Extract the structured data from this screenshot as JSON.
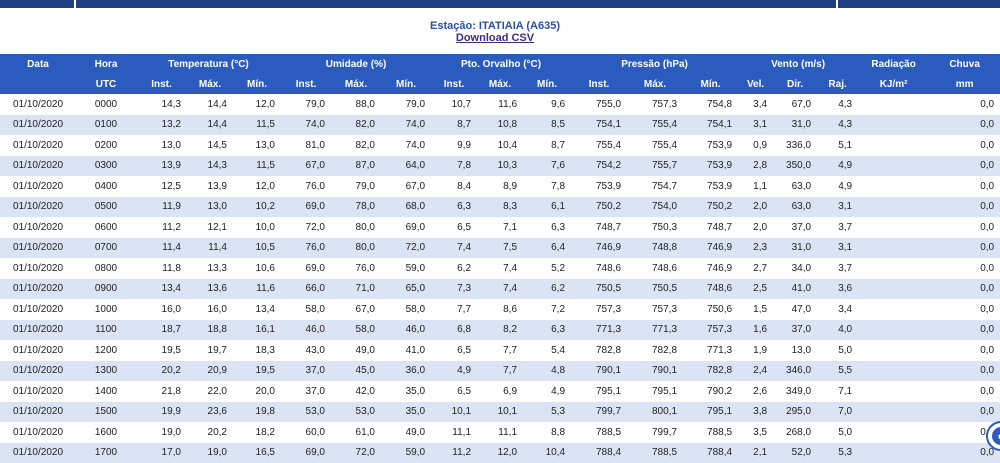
{
  "station": {
    "title": "Estação: ITATIAIA (A635)",
    "download_label": "Download CSV"
  },
  "table": {
    "groups": [
      "Data",
      "Hora",
      "Temperatura (°C)",
      "Umidade (%)",
      "Pto. Orvalho (°C)",
      "Pressão (hPa)",
      "Vento (m/s)",
      "Radiação",
      "Chuva"
    ],
    "subheaders": [
      "UTC",
      "Inst.",
      "Máx.",
      "Mín.",
      "Inst.",
      "Máx.",
      "Mín.",
      "Inst.",
      "Máx.",
      "Mín.",
      "Inst.",
      "Máx.",
      "Mín.",
      "Vel.",
      "Dir.",
      "Raj.",
      "KJ/m²",
      "mm"
    ],
    "rows": [
      [
        "01/10/2020",
        "0000",
        "14,3",
        "14,4",
        "12,0",
        "79,0",
        "88,0",
        "79,0",
        "10,7",
        "11,6",
        "9,6",
        "755,0",
        "757,3",
        "754,8",
        "3,4",
        "67,0",
        "4,3",
        "",
        "0,0"
      ],
      [
        "01/10/2020",
        "0100",
        "13,2",
        "14,4",
        "11,5",
        "74,0",
        "82,0",
        "74,0",
        "8,7",
        "10,8",
        "8,5",
        "754,1",
        "755,4",
        "754,1",
        "3,1",
        "31,0",
        "4,3",
        "",
        "0,0"
      ],
      [
        "01/10/2020",
        "0200",
        "13,0",
        "14,5",
        "13,0",
        "81,0",
        "82,0",
        "74,0",
        "9,9",
        "10,4",
        "8,7",
        "755,4",
        "755,4",
        "753,9",
        "0,9",
        "336,0",
        "5,1",
        "",
        "0,0"
      ],
      [
        "01/10/2020",
        "0300",
        "13,9",
        "14,3",
        "11,5",
        "67,0",
        "87,0",
        "64,0",
        "7,8",
        "10,3",
        "7,6",
        "754,2",
        "755,7",
        "753,9",
        "2,8",
        "350,0",
        "4,9",
        "",
        "0,0"
      ],
      [
        "01/10/2020",
        "0400",
        "12,5",
        "13,9",
        "12,0",
        "76,0",
        "79,0",
        "67,0",
        "8,4",
        "8,9",
        "7,8",
        "753,9",
        "754,7",
        "753,9",
        "1,1",
        "63,0",
        "4,9",
        "",
        "0,0"
      ],
      [
        "01/10/2020",
        "0500",
        "11,9",
        "13,0",
        "10,2",
        "69,0",
        "78,0",
        "68,0",
        "6,3",
        "8,3",
        "6,1",
        "750,2",
        "754,0",
        "750,2",
        "2,0",
        "63,0",
        "3,1",
        "",
        "0,0"
      ],
      [
        "01/10/2020",
        "0600",
        "11,2",
        "12,1",
        "10,0",
        "72,0",
        "80,0",
        "69,0",
        "6,5",
        "7,1",
        "6,3",
        "748,7",
        "750,3",
        "748,7",
        "2,0",
        "37,0",
        "3,7",
        "",
        "0,0"
      ],
      [
        "01/10/2020",
        "0700",
        "11,4",
        "11,4",
        "10,5",
        "76,0",
        "80,0",
        "72,0",
        "7,4",
        "7,5",
        "6,4",
        "746,9",
        "748,8",
        "746,9",
        "2,3",
        "31,0",
        "3,1",
        "",
        "0,0"
      ],
      [
        "01/10/2020",
        "0800",
        "11,8",
        "13,3",
        "10,6",
        "69,0",
        "76,0",
        "59,0",
        "6,2",
        "7,4",
        "5,2",
        "748,6",
        "748,6",
        "746,9",
        "2,7",
        "34,0",
        "3,7",
        "",
        "0,0"
      ],
      [
        "01/10/2020",
        "0900",
        "13,4",
        "13,6",
        "11,6",
        "66,0",
        "71,0",
        "65,0",
        "7,3",
        "7,4",
        "6,2",
        "750,5",
        "750,5",
        "748,6",
        "2,5",
        "41,0",
        "3,6",
        "",
        "0,0"
      ],
      [
        "01/10/2020",
        "1000",
        "16,0",
        "16,0",
        "13,4",
        "58,0",
        "67,0",
        "58,0",
        "7,7",
        "8,6",
        "7,2",
        "757,3",
        "757,3",
        "750,6",
        "1,5",
        "47,0",
        "3,4",
        "",
        "0,0"
      ],
      [
        "01/10/2020",
        "1100",
        "18,7",
        "18,8",
        "16,1",
        "46,0",
        "58,0",
        "46,0",
        "6,8",
        "8,2",
        "6,3",
        "771,3",
        "771,3",
        "757,3",
        "1,6",
        "37,0",
        "4,0",
        "",
        "0,0"
      ],
      [
        "01/10/2020",
        "1200",
        "19,5",
        "19,7",
        "18,3",
        "43,0",
        "49,0",
        "41,0",
        "6,5",
        "7,7",
        "5,4",
        "782,8",
        "782,8",
        "771,3",
        "1,9",
        "13,0",
        "5,0",
        "",
        "0,0"
      ],
      [
        "01/10/2020",
        "1300",
        "20,2",
        "20,9",
        "19,5",
        "37,0",
        "45,0",
        "36,0",
        "4,9",
        "7,7",
        "4,8",
        "790,1",
        "790,1",
        "782,8",
        "2,4",
        "346,0",
        "5,5",
        "",
        "0,0"
      ],
      [
        "01/10/2020",
        "1400",
        "21,8",
        "22,0",
        "20,0",
        "37,0",
        "42,0",
        "35,0",
        "6,5",
        "6,9",
        "4,9",
        "795,1",
        "795,1",
        "790,2",
        "2,6",
        "349,0",
        "7,1",
        "",
        "0,0"
      ],
      [
        "01/10/2020",
        "1500",
        "19,9",
        "23,6",
        "19,8",
        "53,0",
        "53,0",
        "35,0",
        "10,1",
        "10,1",
        "5,3",
        "799,7",
        "800,1",
        "795,1",
        "3,8",
        "295,0",
        "7,0",
        "",
        "0,0"
      ],
      [
        "01/10/2020",
        "1600",
        "19,0",
        "20,2",
        "18,2",
        "60,0",
        "61,0",
        "49,0",
        "11,1",
        "11,1",
        "8,8",
        "788,5",
        "799,7",
        "788,5",
        "3,5",
        "268,0",
        "5,0",
        "",
        "0,0"
      ],
      [
        "01/10/2020",
        "1700",
        "17,0",
        "19,0",
        "16,5",
        "69,0",
        "72,0",
        "59,0",
        "11,2",
        "12,0",
        "10,4",
        "788,4",
        "788,5",
        "788,4",
        "2,1",
        "52,0",
        "5,3",
        "",
        "0,0"
      ]
    ]
  }
}
